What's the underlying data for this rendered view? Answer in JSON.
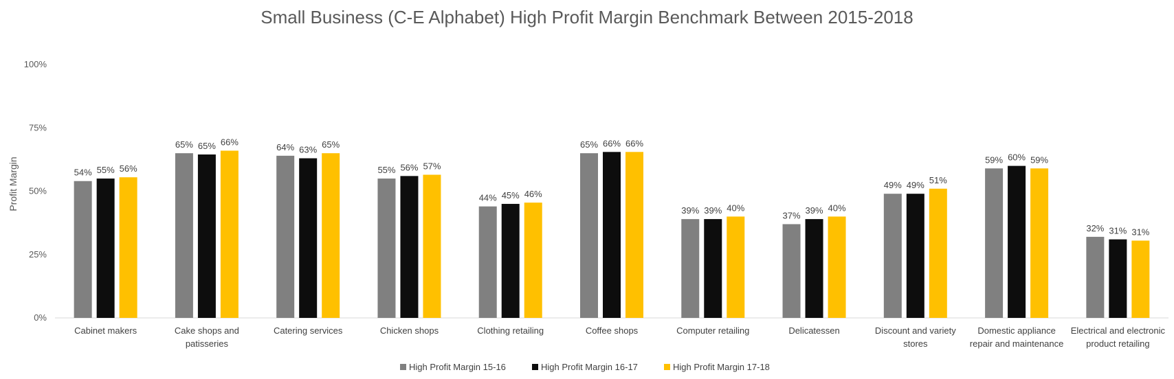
{
  "chart_data": {
    "type": "bar",
    "title": "Small Business (C-E Alphabet) High Profit Margin Benchmark Between 2015-2018",
    "ylabel": "Profit Margin",
    "xlabel": "",
    "ylim": [
      0,
      100
    ],
    "yticks": [
      "0%",
      "25%",
      "50%",
      "75%",
      "100%"
    ],
    "grid": false,
    "legend_position": "bottom",
    "categories": [
      [
        "Cabinet makers"
      ],
      [
        "Cake shops and",
        "patisseries"
      ],
      [
        "Catering services"
      ],
      [
        "Chicken shops"
      ],
      [
        "Clothing retailing"
      ],
      [
        "Coffee shops"
      ],
      [
        "Computer retailing"
      ],
      [
        "Delicatessen"
      ],
      [
        "Discount and variety",
        "stores"
      ],
      [
        "Domestic appliance",
        "repair and maintenance"
      ],
      [
        "Electrical and electronic",
        "product retailing"
      ]
    ],
    "series": [
      {
        "name": "High Profit Margin 15-16",
        "color": "#808080",
        "values": [
          54,
          65,
          64,
          55,
          44,
          65,
          39,
          37,
          49,
          59,
          32
        ],
        "labels": [
          "54%",
          "65%",
          "64%",
          "55%",
          "44%",
          "65%",
          "39%",
          "37%",
          "49%",
          "59%",
          "32%"
        ]
      },
      {
        "name": "High Profit Margin 16-17",
        "color": "#0d0d0d",
        "values": [
          55,
          64.5,
          63,
          56,
          45,
          65.5,
          39,
          39,
          49,
          60,
          31
        ],
        "labels": [
          "55%",
          "65%",
          "63%",
          "56%",
          "45%",
          "66%",
          "39%",
          "39%",
          "49%",
          "60%",
          "31%"
        ]
      },
      {
        "name": "High Profit Margin 17-18",
        "color": "#ffc000",
        "values": [
          55.5,
          66,
          65,
          56.5,
          45.5,
          65.5,
          40,
          40,
          51,
          59,
          30.5
        ],
        "labels": [
          "56%",
          "66%",
          "65%",
          "57%",
          "46%",
          "66%",
          "40%",
          "40%",
          "51%",
          "59%",
          "31%"
        ]
      }
    ]
  }
}
